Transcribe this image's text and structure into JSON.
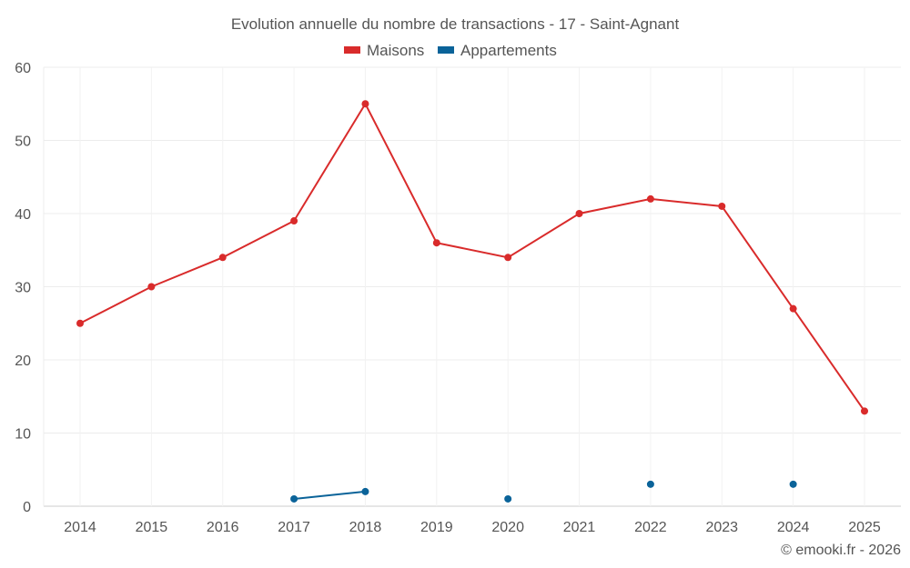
{
  "chart_data": {
    "type": "line",
    "title": "Evolution annuelle du nombre de transactions - 17 - Saint-Agnant",
    "xlabel": "",
    "ylabel": "",
    "ylim": [
      0,
      60
    ],
    "yticks": [
      0,
      10,
      20,
      30,
      40,
      50,
      60
    ],
    "grid": true,
    "legend_position": "top-center",
    "categories": [
      "2014",
      "2015",
      "2016",
      "2017",
      "2018",
      "2019",
      "2020",
      "2021",
      "2022",
      "2023",
      "2024",
      "2025"
    ],
    "series": [
      {
        "name": "Maisons",
        "color": "#d92b2b",
        "values": [
          25,
          30,
          34,
          39,
          55,
          36,
          34,
          40,
          42,
          41,
          27,
          13
        ]
      },
      {
        "name": "Appartements",
        "color": "#0a6399",
        "values": [
          null,
          null,
          null,
          1,
          2,
          null,
          1,
          null,
          3,
          null,
          3,
          null
        ]
      }
    ],
    "credit": "© emooki.fr - 2026"
  }
}
